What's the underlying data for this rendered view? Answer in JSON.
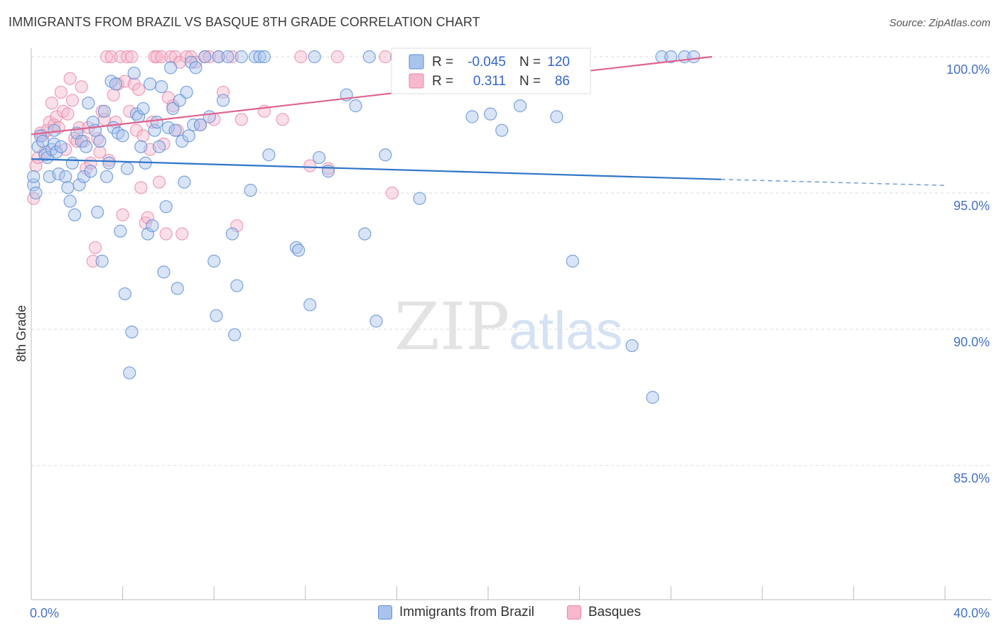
{
  "title": "IMMIGRANTS FROM BRAZIL VS BASQUE 8TH GRADE CORRELATION CHART",
  "source": "Source: ZipAtlas.com",
  "watermark": {
    "zip": "ZIP",
    "atlas": "atlas"
  },
  "colors": {
    "brazil_fill": "#aac4ee",
    "brazil_stroke": "#5b8fd6",
    "brazil_line": "#2f74c9",
    "basque_fill": "#f7b8cb",
    "basque_stroke": "#e888a8",
    "basque_line": "#e0628e",
    "tick_label": "#4472c4",
    "grid": "#d9d9d9"
  },
  "legend": {
    "rows": [
      {
        "r_label": "R =",
        "r_value": "-0.045",
        "n_label": "N =",
        "n_value": "120",
        "series": "brazil"
      },
      {
        "r_label": "R =",
        "r_value": "0.311",
        "n_label": "N =",
        "n_value": "86",
        "series": "basque"
      }
    ]
  },
  "bottom_legend": [
    {
      "label": "Immigrants from Brazil",
      "series": "brazil"
    },
    {
      "label": "Basques",
      "series": "basque"
    }
  ],
  "chart_data": {
    "type": "scatter",
    "title": "IMMIGRANTS FROM BRAZIL VS BASQUE 8TH GRADE CORRELATION CHART",
    "xlabel": "",
    "ylabel": "8th Grade",
    "xlim": [
      0,
      40
    ],
    "ylim": [
      80.5,
      100.9
    ],
    "x_tick_labels": [
      "0.0%",
      "40.0%"
    ],
    "y_ticks": [
      100,
      95,
      90,
      85
    ],
    "y_tick_labels": [
      "100.0%",
      "95.0%",
      "90.0%",
      "85.0%"
    ],
    "grid": "horizontal dashed",
    "legend_position": "top-center",
    "series": [
      {
        "name": "Immigrants from Brazil",
        "r": -0.045,
        "n": 120,
        "trend": {
          "x": [
            0,
            30.2
          ],
          "y": [
            96.25,
            95.5
          ],
          "dashed_to": [
            40,
            95.28
          ]
        },
        "points": [
          [
            0.1,
            95.3
          ],
          [
            0.1,
            95.6
          ],
          [
            0.2,
            95.0
          ],
          [
            0.3,
            96.7
          ],
          [
            0.4,
            97.1
          ],
          [
            0.5,
            96.9
          ],
          [
            0.6,
            96.4
          ],
          [
            0.7,
            96.3
          ],
          [
            0.8,
            95.6
          ],
          [
            0.9,
            96.6
          ],
          [
            1.0,
            97.3
          ],
          [
            1.0,
            96.8
          ],
          [
            1.1,
            96.5
          ],
          [
            1.2,
            95.7
          ],
          [
            1.3,
            96.7
          ],
          [
            1.5,
            95.6
          ],
          [
            1.6,
            95.2
          ],
          [
            1.7,
            94.7
          ],
          [
            1.8,
            96.1
          ],
          [
            1.9,
            94.2
          ],
          [
            2.0,
            97.2
          ],
          [
            2.1,
            95.3
          ],
          [
            2.2,
            96.9
          ],
          [
            2.3,
            95.6
          ],
          [
            2.4,
            96.7
          ],
          [
            2.5,
            98.3
          ],
          [
            2.6,
            95.8
          ],
          [
            2.7,
            97.6
          ],
          [
            2.8,
            97.3
          ],
          [
            2.9,
            94.3
          ],
          [
            3.0,
            96.9
          ],
          [
            3.1,
            92.5
          ],
          [
            3.2,
            98.0
          ],
          [
            3.3,
            95.6
          ],
          [
            3.4,
            96.1
          ],
          [
            3.5,
            99.1
          ],
          [
            3.6,
            97.4
          ],
          [
            3.7,
            99.0
          ],
          [
            3.8,
            97.2
          ],
          [
            3.9,
            93.6
          ],
          [
            4.0,
            97.1
          ],
          [
            4.1,
            91.3
          ],
          [
            4.2,
            95.9
          ],
          [
            4.3,
            88.4
          ],
          [
            4.4,
            89.9
          ],
          [
            4.5,
            99.4
          ],
          [
            4.6,
            97.9
          ],
          [
            4.7,
            97.8
          ],
          [
            4.8,
            96.7
          ],
          [
            4.9,
            98.1
          ],
          [
            5.0,
            96.1
          ],
          [
            5.1,
            93.5
          ],
          [
            5.2,
            99.0
          ],
          [
            5.3,
            93.8
          ],
          [
            5.4,
            97.3
          ],
          [
            5.5,
            97.6
          ],
          [
            5.6,
            96.7
          ],
          [
            5.7,
            98.9
          ],
          [
            5.8,
            92.1
          ],
          [
            5.9,
            94.5
          ],
          [
            6.0,
            97.4
          ],
          [
            6.1,
            99.6
          ],
          [
            6.2,
            98.1
          ],
          [
            6.3,
            97.3
          ],
          [
            6.4,
            91.5
          ],
          [
            6.5,
            98.4
          ],
          [
            6.6,
            96.9
          ],
          [
            6.7,
            95.4
          ],
          [
            6.8,
            98.7
          ],
          [
            6.9,
            97.1
          ],
          [
            7.0,
            99.8
          ],
          [
            7.1,
            97.5
          ],
          [
            7.2,
            99.6
          ],
          [
            7.4,
            97.5
          ],
          [
            7.6,
            100.0
          ],
          [
            7.8,
            97.8
          ],
          [
            8.0,
            92.5
          ],
          [
            8.1,
            90.5
          ],
          [
            8.2,
            100.0
          ],
          [
            8.4,
            98.4
          ],
          [
            8.6,
            100.0
          ],
          [
            8.8,
            93.5
          ],
          [
            8.9,
            89.8
          ],
          [
            9.0,
            91.6
          ],
          [
            9.2,
            100.0
          ],
          [
            9.6,
            95.1
          ],
          [
            9.8,
            100.0
          ],
          [
            10.0,
            100.0
          ],
          [
            10.4,
            96.4
          ],
          [
            10.2,
            100.0
          ],
          [
            11.6,
            93.0
          ],
          [
            11.7,
            92.9
          ],
          [
            12.2,
            90.9
          ],
          [
            12.4,
            100.0
          ],
          [
            12.6,
            96.3
          ],
          [
            13.0,
            95.8
          ],
          [
            13.8,
            98.6
          ],
          [
            14.2,
            98.2
          ],
          [
            14.6,
            93.5
          ],
          [
            14.8,
            100.0
          ],
          [
            15.1,
            90.3
          ],
          [
            15.5,
            96.4
          ],
          [
            16.0,
            100.0
          ],
          [
            16.6,
            100.0
          ],
          [
            17.0,
            94.8
          ],
          [
            17.2,
            100.0
          ],
          [
            19.3,
            97.8
          ],
          [
            19.4,
            100.0
          ],
          [
            20.1,
            97.9
          ],
          [
            20.6,
            97.3
          ],
          [
            21.4,
            98.2
          ],
          [
            22.0,
            100.0
          ],
          [
            23.0,
            97.8
          ],
          [
            23.7,
            92.5
          ],
          [
            26.3,
            89.4
          ],
          [
            27.2,
            87.5
          ],
          [
            27.6,
            100.0
          ],
          [
            28.0,
            100.0
          ],
          [
            28.6,
            100.0
          ],
          [
            29.0,
            100.0
          ]
        ]
      },
      {
        "name": "Basques",
        "r": 0.311,
        "n": 86,
        "trend": {
          "x": [
            0,
            29.8
          ],
          "y": [
            97.15,
            100.0
          ]
        },
        "points": [
          [
            0.1,
            94.8
          ],
          [
            0.2,
            96.0
          ],
          [
            0.3,
            96.3
          ],
          [
            0.4,
            97.2
          ],
          [
            0.5,
            97.1
          ],
          [
            0.6,
            96.5
          ],
          [
            0.7,
            97.3
          ],
          [
            0.8,
            97.6
          ],
          [
            0.9,
            98.3
          ],
          [
            1.0,
            97.5
          ],
          [
            1.1,
            97.8
          ],
          [
            1.2,
            97.4
          ],
          [
            1.3,
            98.7
          ],
          [
            1.4,
            98.0
          ],
          [
            1.5,
            96.6
          ],
          [
            1.6,
            97.9
          ],
          [
            1.7,
            99.2
          ],
          [
            1.8,
            98.4
          ],
          [
            1.9,
            97.0
          ],
          [
            2.0,
            96.9
          ],
          [
            2.1,
            97.4
          ],
          [
            2.2,
            98.9
          ],
          [
            2.3,
            96.9
          ],
          [
            2.4,
            95.9
          ],
          [
            2.5,
            97.4
          ],
          [
            2.6,
            96.1
          ],
          [
            2.7,
            92.5
          ],
          [
            2.8,
            93.0
          ],
          [
            2.9,
            97.0
          ],
          [
            3.0,
            96.5
          ],
          [
            3.1,
            98.0
          ],
          [
            3.2,
            97.7
          ],
          [
            3.3,
            100.0
          ],
          [
            3.4,
            96.2
          ],
          [
            3.5,
            100.0
          ],
          [
            3.6,
            98.6
          ],
          [
            3.7,
            97.6
          ],
          [
            3.8,
            99.0
          ],
          [
            3.9,
            100.0
          ],
          [
            4.0,
            94.2
          ],
          [
            4.1,
            99.1
          ],
          [
            4.2,
            100.0
          ],
          [
            4.3,
            98.0
          ],
          [
            4.4,
            100.0
          ],
          [
            4.5,
            99.0
          ],
          [
            4.6,
            97.3
          ],
          [
            4.7,
            98.8
          ],
          [
            4.8,
            95.2
          ],
          [
            4.9,
            97.1
          ],
          [
            5.0,
            93.9
          ],
          [
            5.1,
            94.1
          ],
          [
            5.2,
            96.6
          ],
          [
            5.3,
            97.6
          ],
          [
            5.4,
            100.0
          ],
          [
            5.5,
            100.0
          ],
          [
            5.6,
            95.4
          ],
          [
            5.7,
            100.0
          ],
          [
            5.8,
            96.8
          ],
          [
            5.9,
            93.5
          ],
          [
            6.0,
            98.5
          ],
          [
            6.1,
            100.0
          ],
          [
            6.2,
            98.2
          ],
          [
            6.3,
            100.0
          ],
          [
            6.4,
            97.3
          ],
          [
            6.5,
            99.8
          ],
          [
            6.6,
            93.5
          ],
          [
            6.8,
            100.0
          ],
          [
            7.0,
            100.0
          ],
          [
            7.2,
            99.8
          ],
          [
            7.4,
            97.5
          ],
          [
            7.6,
            100.0
          ],
          [
            7.8,
            100.0
          ],
          [
            8.0,
            97.7
          ],
          [
            8.2,
            100.0
          ],
          [
            8.4,
            98.7
          ],
          [
            8.8,
            100.0
          ],
          [
            9.0,
            93.8
          ],
          [
            9.2,
            97.7
          ],
          [
            10.2,
            98.0
          ],
          [
            11.0,
            97.7
          ],
          [
            11.8,
            100.0
          ],
          [
            12.2,
            96.0
          ],
          [
            13.0,
            95.9
          ],
          [
            13.4,
            100.0
          ],
          [
            15.5,
            100.0
          ],
          [
            15.8,
            95.0
          ]
        ]
      }
    ]
  }
}
